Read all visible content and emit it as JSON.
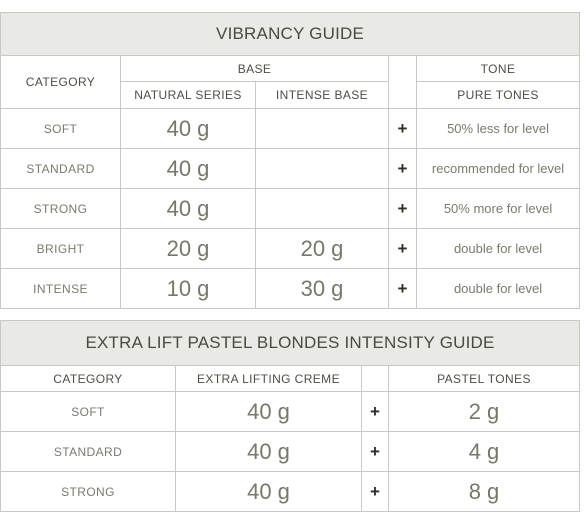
{
  "vibrancy": {
    "title": "VIBRANCY GUIDE",
    "category_header": "CATEGORY",
    "base_header": "BASE",
    "tone_header": "TONE",
    "natural_series_header": "NATURAL SERIES",
    "intense_base_header": "INTENSE BASE",
    "pure_tones_header": "PURE TONES",
    "rows": [
      {
        "category": "SOFT",
        "natural": "40 g",
        "intense": "",
        "plus": "+",
        "tone": "50% less for level"
      },
      {
        "category": "STANDARD",
        "natural": "40 g",
        "intense": "",
        "plus": "+",
        "tone": "recommended for level"
      },
      {
        "category": "STRONG",
        "natural": "40 g",
        "intense": "",
        "plus": "+",
        "tone": "50% more for level"
      },
      {
        "category": "BRIGHT",
        "natural": "20 g",
        "intense": "20 g",
        "plus": "+",
        "tone": "double for level"
      },
      {
        "category": "INTENSE",
        "natural": "10 g",
        "intense": "30 g",
        "plus": "+",
        "tone": "double for level"
      }
    ]
  },
  "pastel": {
    "title": "EXTRA LIFT PASTEL BLONDES INTENSITY GUIDE",
    "category_header": "CATEGORY",
    "creme_header": "EXTRA LIFTING CREME",
    "tones_header": "PASTEL TONES",
    "rows": [
      {
        "category": "SOFT",
        "creme": "40 g",
        "plus": "+",
        "tones": "2 g"
      },
      {
        "category": "STANDARD",
        "creme": "40 g",
        "plus": "+",
        "tones": "4 g"
      },
      {
        "category": "STRONG",
        "creme": "40 g",
        "plus": "+",
        "tones": "8 g"
      }
    ]
  }
}
